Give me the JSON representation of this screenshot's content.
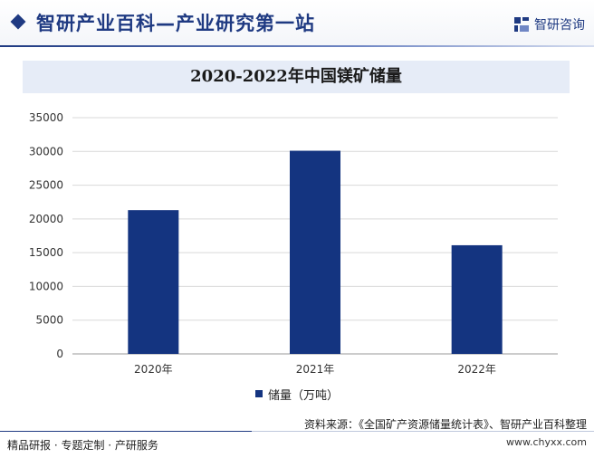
{
  "header": {
    "title": "智研产业百科—产业研究第一站",
    "brand_name": "智研咨询"
  },
  "colors": {
    "accent": "#1f3a82",
    "bar": "#143480",
    "title_band": "#e6ecf7"
  },
  "chart_data": {
    "type": "bar",
    "title": "2020-2022年中国镁矿储量",
    "categories": [
      "2020年",
      "2021年",
      "2022年"
    ],
    "series": [
      {
        "name": "储量（万吨）",
        "values": [
          21300,
          30100,
          16100
        ]
      }
    ],
    "xlabel": "",
    "ylabel": "",
    "ylim": [
      0,
      35000
    ],
    "yticks": [
      0,
      5000,
      10000,
      15000,
      20000,
      25000,
      30000,
      35000
    ],
    "grid": true,
    "legend": "bottom-center"
  },
  "footer": {
    "left": "精品研报 · 专题定制 · 产研服务",
    "source": "资料来源：《全国矿产资源储量统计表》、智研产业百科整理",
    "url": "www.chyxx.com"
  }
}
